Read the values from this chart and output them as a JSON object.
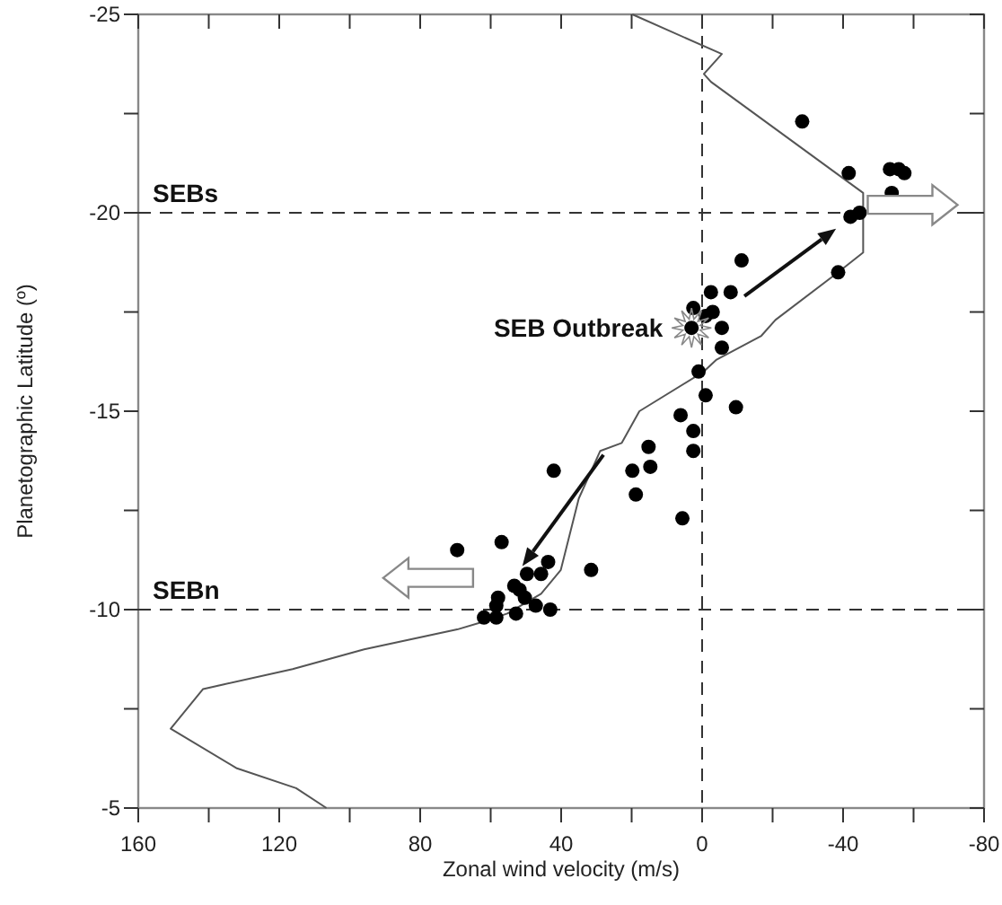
{
  "chart_data": {
    "type": "scatter",
    "xlabel": "Zonal wind velocity (m/s)",
    "ylabel": "Planetographic Latitude (º)",
    "xlim": [
      160,
      -80
    ],
    "ylim": [
      -5,
      -25
    ],
    "xticks": [
      160,
      {
        "value": 140,
        "label": null
      },
      120,
      {
        "value": 100,
        "label": null
      },
      80,
      {
        "value": 60,
        "label": null
      },
      40,
      {
        "value": 20,
        "label": null
      },
      0,
      {
        "value": -20,
        "label": null
      },
      -40,
      {
        "value": -60,
        "label": null
      },
      -80
    ],
    "yticks": [
      -5,
      {
        "value": -7.5,
        "label": null
      },
      -10,
      {
        "value": -12.5,
        "label": null
      },
      -15,
      {
        "value": -17.5,
        "label": null
      },
      -20,
      {
        "value": -22.5,
        "label": null
      },
      -25
    ],
    "marker": "circle",
    "legend": false,
    "grid": false,
    "series": [
      {
        "type": "line",
        "color": "#555555",
        "line_style": "solid",
        "marker": "none",
        "x": [
          19.8,
          -5.6,
          -0.5,
          -2.5,
          -45.7,
          -45.7,
          -45.7,
          -38.6,
          -20.8,
          -16.8,
          -4.1,
          -0.5,
          17.8,
          22.8,
          28.9,
          35.0,
          40.1,
          45.7,
          55.3,
          61.9,
          69.5,
          95.9,
          116.2,
          141.6,
          150.8,
          132.0,
          115.2,
          106.6
        ],
        "values": [
          -25,
          -24.0,
          -23.5,
          -23.3,
          -20.5,
          -20.0,
          -19.0,
          -18.5,
          -17.3,
          -16.9,
          -16.3,
          -16.0,
          -15.0,
          -14.2,
          -14.0,
          -12.8,
          -11.0,
          -10.4,
          -9.9,
          -9.7,
          -9.5,
          -9.0,
          -8.5,
          -8.0,
          -7.0,
          -6.0,
          -5.5,
          -5
        ]
      },
      {
        "color": "#000000",
        "x": [
          -28.4,
          -41.6,
          -53.3,
          -55.8,
          -57.4,
          -53.8,
          -42.1,
          -44.7,
          -11.2,
          -38.6,
          -2.5,
          -8.1,
          2.5,
          -3.0,
          -1,
          3,
          -5.6,
          -5.6,
          1,
          -1,
          -9.6,
          6.1,
          2.5,
          2.5,
          15.2,
          19.8,
          14.7,
          18.8,
          5.6,
          42.1,
          69.5,
          56.9,
          31.5,
          43.7,
          49.7,
          45.7,
          53.3,
          51.8,
          57.9,
          50.3,
          58.4,
          47.2,
          43.1,
          52.8,
          61.9,
          58.4
        ],
        "values": [
          -22.3,
          -21.0,
          -21.1,
          -21.1,
          -21.0,
          -20.5,
          -19.9,
          -20.0,
          -18.8,
          -18.5,
          -18.0,
          -18.0,
          -17.6,
          -17.5,
          -17.4,
          -17.1,
          -17.1,
          -16.6,
          -16.0,
          -15.4,
          -15.1,
          -14.9,
          -14.5,
          -14.0,
          -14.1,
          -13.5,
          -13.6,
          -12.9,
          -12.3,
          -13.5,
          -11.5,
          -11.7,
          -11.0,
          -11.2,
          -10.9,
          -10.9,
          -10.6,
          -10.5,
          -10.3,
          -10.3,
          -10.1,
          -10.1,
          -10.0,
          -9.9,
          -9.8,
          -9.8
        ]
      }
    ],
    "ref_lines": [
      {
        "axis": "y",
        "value": -20,
        "label": "SEBs",
        "line_style": "dashed"
      },
      {
        "axis": "y",
        "value": -10,
        "label": "SEBn",
        "line_style": "dashed"
      },
      {
        "axis": "x",
        "value": 0,
        "line_style": "dashed"
      }
    ],
    "annotations": [
      {
        "text": "SEB Outbreak",
        "x": 3,
        "y": -17.1
      }
    ]
  }
}
